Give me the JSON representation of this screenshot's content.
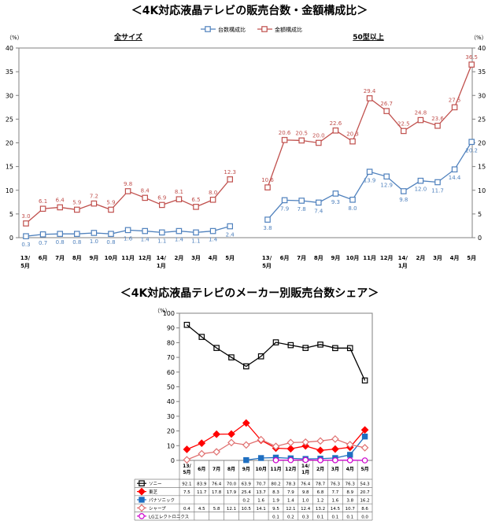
{
  "title_top": "＜4K対応液晶テレビの販売台数・金額構成比＞",
  "title_bottom": "＜4K対応液晶テレビのメーカー別販売台数シェア＞",
  "chart_data": [
    {
      "type": "line",
      "left_section_label": "全サイズ",
      "right_section_label": "50型以上",
      "unit_left": "（%）",
      "unit_right": "（%）",
      "ylim": [
        0,
        40
      ],
      "yticks": [
        0,
        5,
        10,
        15,
        20,
        25,
        30,
        35,
        40
      ],
      "categories": [
        "13/\n5月",
        "6月",
        "7月",
        "8月",
        "9月",
        "10月",
        "11月",
        "12月",
        "14/\n1月",
        "2月",
        "3月",
        "4月",
        "5月"
      ],
      "series": [
        {
          "name": "台数構成比",
          "color": "#4F81BD",
          "marker": "square",
          "all_sizes": [
            0.3,
            0.7,
            0.8,
            0.8,
            1.0,
            0.8,
            1.6,
            1.4,
            1.1,
            1.4,
            1.1,
            1.4,
            2.4
          ],
          "over_50": [
            3.8,
            7.9,
            7.8,
            7.4,
            9.3,
            8.0,
            13.9,
            12.9,
            9.8,
            12.0,
            11.7,
            14.4,
            20.2
          ]
        },
        {
          "name": "金額構成比",
          "color": "#C0504D",
          "marker": "square",
          "all_sizes": [
            3.0,
            6.1,
            6.4,
            5.9,
            7.2,
            5.9,
            9.8,
            8.4,
            6.9,
            8.1,
            6.5,
            8.0,
            12.3
          ],
          "over_50": [
            10.6,
            20.6,
            20.5,
            20.0,
            22.6,
            20.3,
            29.4,
            26.7,
            22.5,
            24.8,
            23.6,
            27.5,
            36.5
          ]
        }
      ]
    },
    {
      "type": "line",
      "unit": "（%）",
      "ylim": [
        0,
        100
      ],
      "yticks": [
        0,
        10,
        20,
        30,
        40,
        50,
        60,
        70,
        80,
        90,
        100
      ],
      "categories": [
        "13/\n5月",
        "6月",
        "7月",
        "8月",
        "9月",
        "10月",
        "11月",
        "12月",
        "14/\n1月",
        "2月",
        "3月",
        "4月",
        "5月"
      ],
      "series": [
        {
          "name": "ソニー",
          "color": "#000000",
          "marker": "open-square",
          "fill": "none",
          "values": [
            92.1,
            83.9,
            76.4,
            70.0,
            63.9,
            70.7,
            80.2,
            78.3,
            76.4,
            78.7,
            76.3,
            76.3,
            54.3
          ],
          "display": [
            "92.1",
            "83.9",
            "76.4",
            "70.0",
            "63.9",
            "70.7",
            "80.2",
            "78.3",
            "76.4",
            "78.7",
            "76.3",
            "76.3",
            "54.3"
          ]
        },
        {
          "name": "東芝",
          "color": "#FF0000",
          "marker": "diamond",
          "fill": "#FF0000",
          "values": [
            7.5,
            11.7,
            17.8,
            17.9,
            25.4,
            13.7,
            8.3,
            7.9,
            9.8,
            6.8,
            7.7,
            8.9,
            20.7
          ],
          "display": [
            "7.5",
            "11.7",
            "17.8",
            "17.9",
            "25.4",
            "13.7",
            "8.3",
            "7.9",
            "9.8",
            "6.8",
            "7.7",
            "8.9",
            "20.7"
          ]
        },
        {
          "name": "パナソニック",
          "color": "#1F6FC1",
          "marker": "filled-square",
          "fill": "#1F6FC1",
          "values": [
            null,
            null,
            null,
            null,
            0.2,
            1.6,
            1.9,
            1.4,
            1.0,
            1.2,
            1.6,
            3.8,
            16.2
          ],
          "display": [
            "",
            "",
            "",
            "",
            "0.2",
            "1.6",
            "1.9",
            "1.4",
            "1.0",
            "1.2",
            "1.6",
            "3.8",
            "16.2"
          ]
        },
        {
          "name": "シャープ",
          "color": "#E07070",
          "marker": "open-diamond",
          "fill": "#fff",
          "values": [
            0.4,
            4.5,
            5.8,
            12.1,
            10.5,
            14.1,
            9.5,
            12.1,
            12.4,
            13.2,
            14.5,
            10.7,
            8.6
          ],
          "display": [
            "0.4",
            "4.5",
            "5.8",
            "12.1",
            "10.5",
            "14.1",
            "9.5",
            "12.1",
            "12.4",
            "13.2",
            "14.5",
            "10.7",
            "8.6"
          ]
        },
        {
          "name": "LGエレクトロニクス",
          "color": "#CC00CC",
          "marker": "open-circle",
          "fill": "#fff",
          "values": [
            null,
            null,
            null,
            null,
            null,
            null,
            0.1,
            0.2,
            0.3,
            0.1,
            0.1,
            0.1,
            0.0
          ],
          "display": [
            "",
            "",
            "",
            "",
            "",
            "",
            "0.1",
            "0.2",
            "0.3",
            "0.1",
            "0.1",
            "0.1",
            "0.0"
          ]
        }
      ]
    }
  ]
}
